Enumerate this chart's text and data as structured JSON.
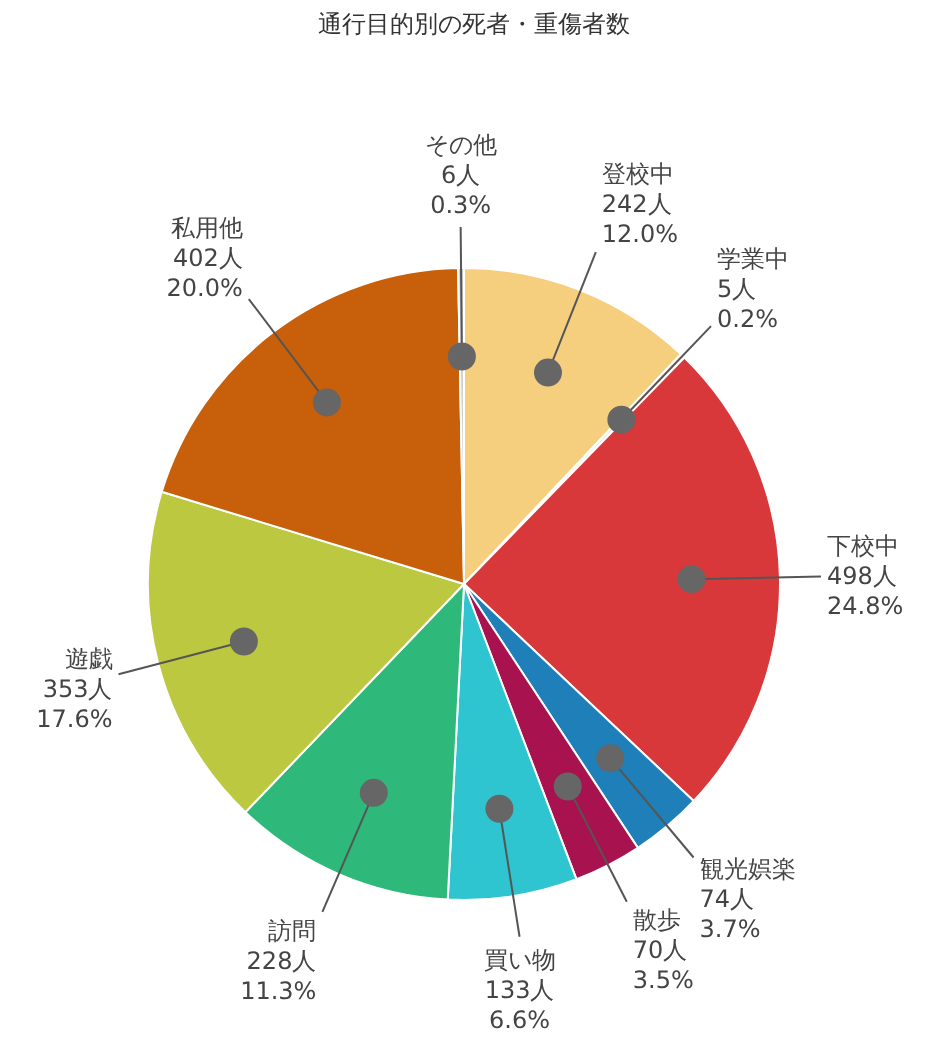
{
  "chart_data": {
    "type": "pie",
    "title": "通行目的別の死者・重傷者数",
    "categories": [
      "登校中",
      "学業中",
      "下校中",
      "観光娯楽",
      "散歩",
      "買い物",
      "訪問",
      "遊戯",
      "私用他",
      "その他"
    ],
    "values": [
      242,
      5,
      498,
      74,
      70,
      133,
      228,
      353,
      402,
      6
    ],
    "value_labels": [
      "242人\n12.0%",
      "5人\n0.2%",
      "498人\n24.8%",
      "74人\n3.7%",
      "70人\n3.5%",
      "133人\n6.6%",
      "228人\n11.3%",
      "353人\n17.6%",
      "402人\n20.0%",
      "6人\n0.3%"
    ],
    "colors": [
      "#f5cf7e",
      "#f5f0e0",
      "#d9383a",
      "#1f7fb8",
      "#a8124e",
      "#2ec4d0",
      "#2eb87a",
      "#bcc840",
      "#c85f0a",
      "#d0d0d0"
    ]
  }
}
